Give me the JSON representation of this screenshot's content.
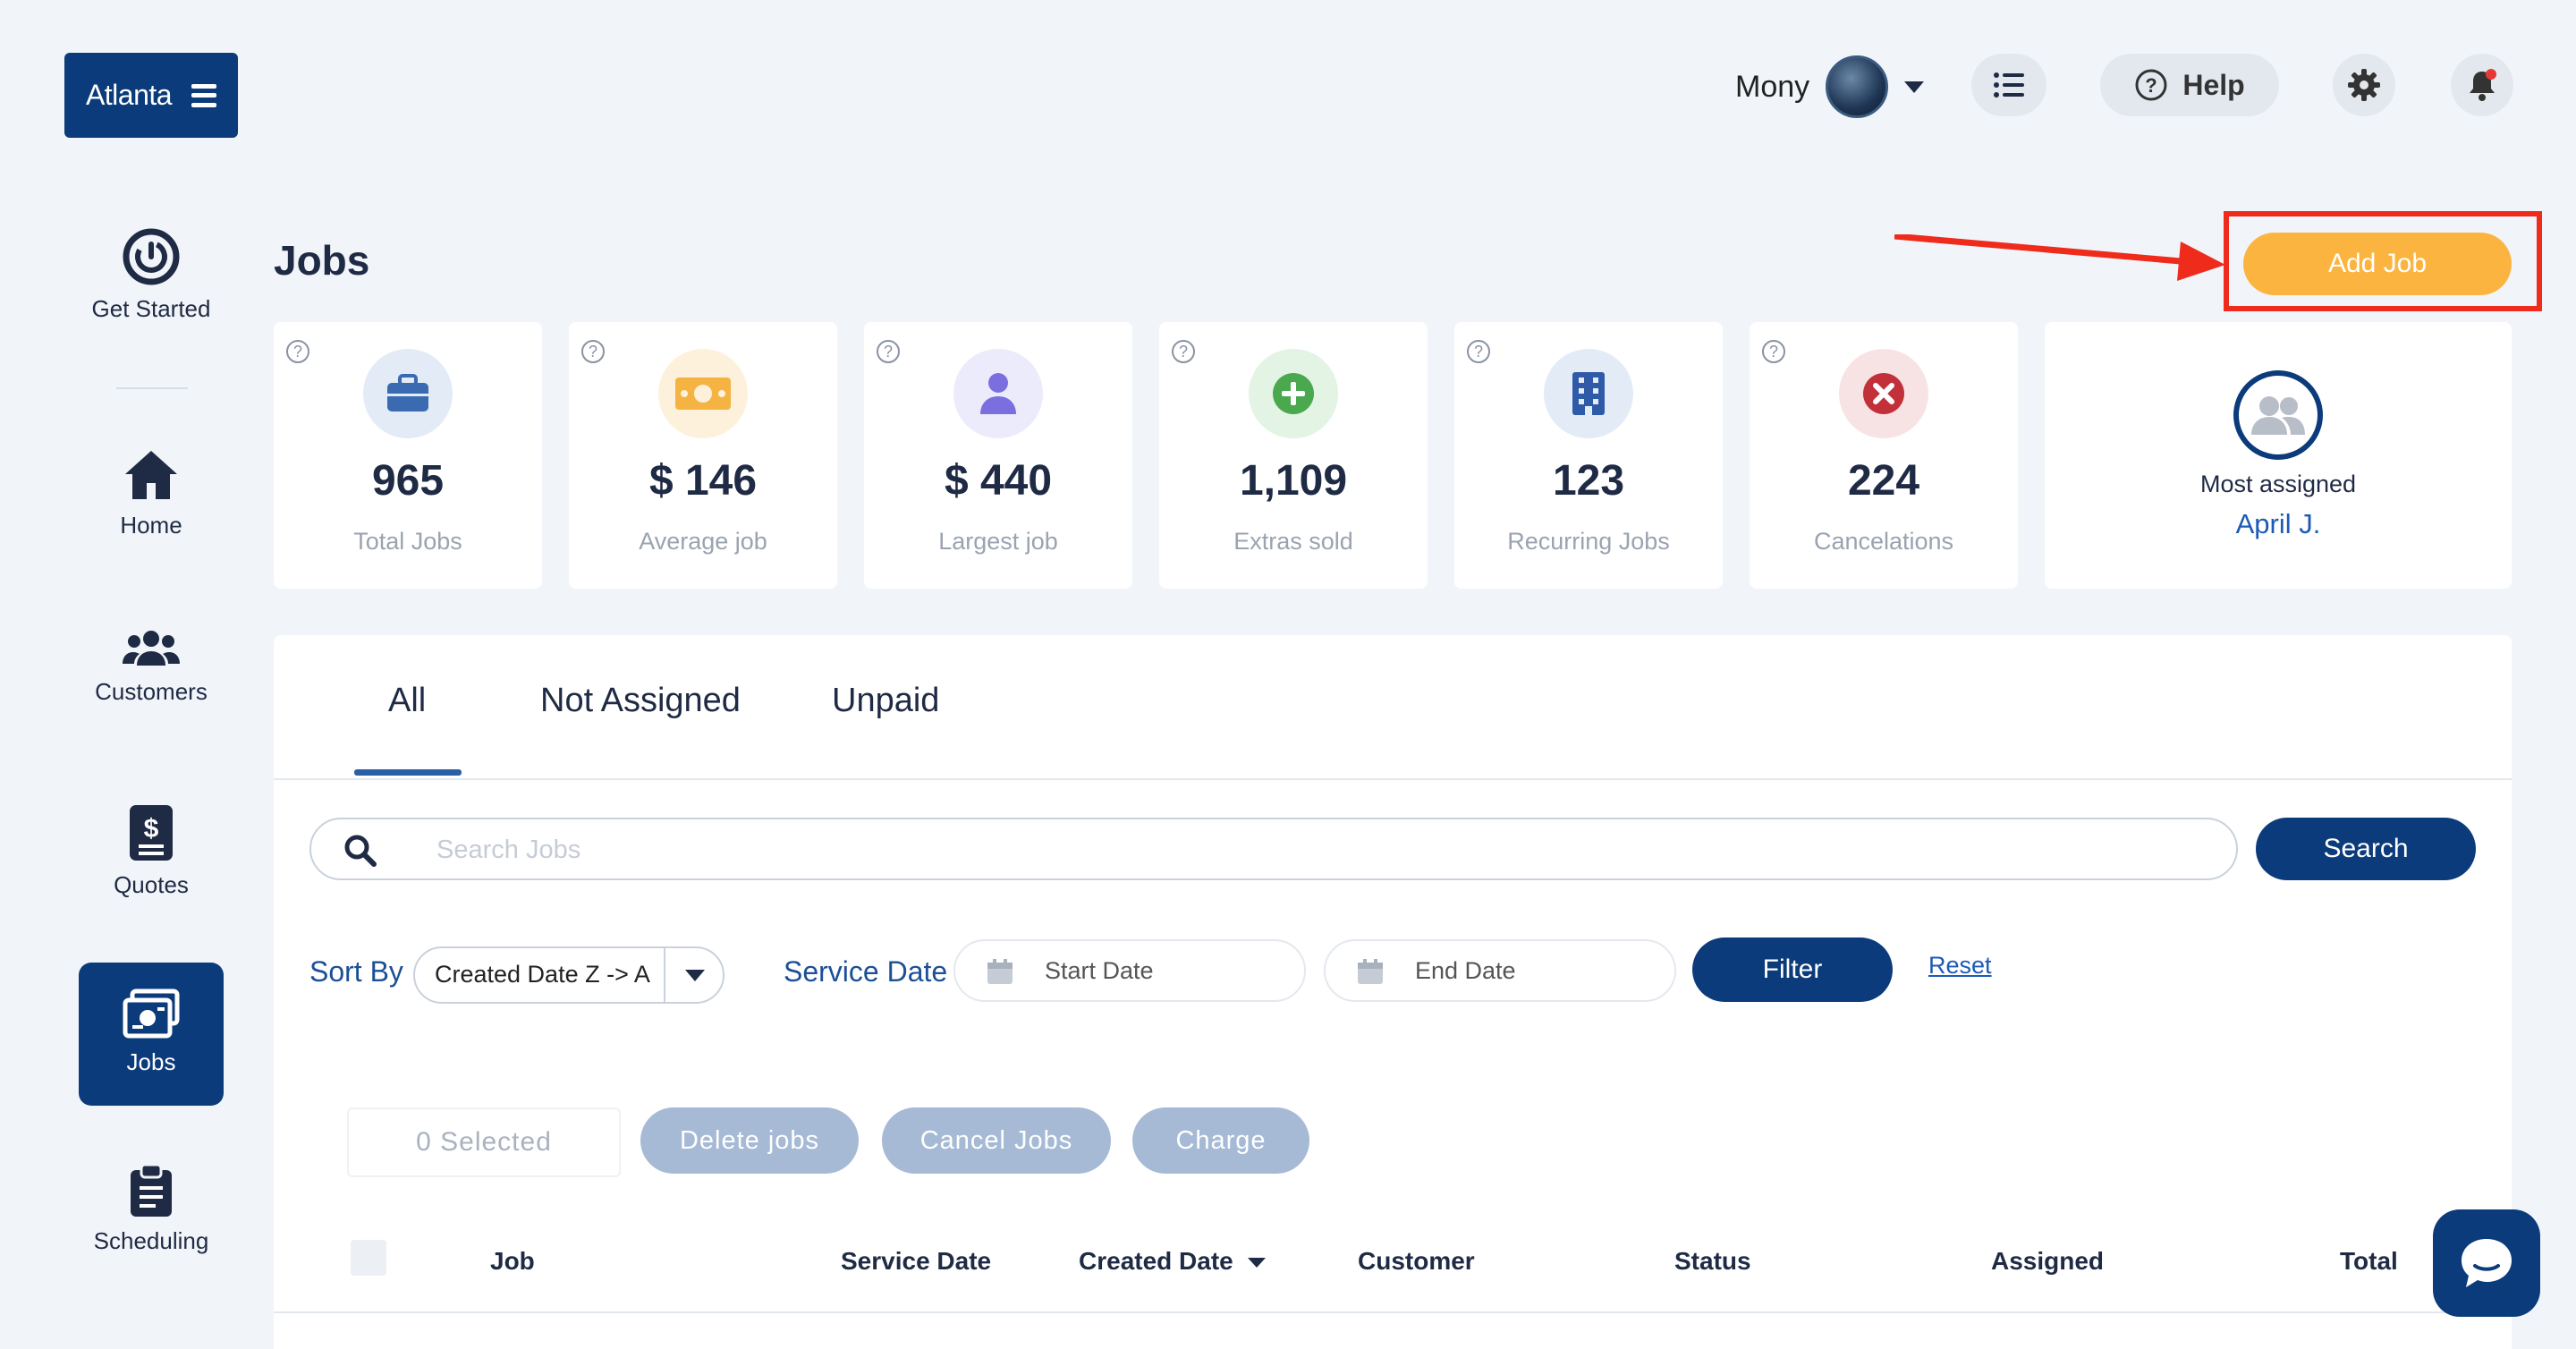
{
  "brand": {
    "location": "Atlanta"
  },
  "header": {
    "user_name": "Mony",
    "help_label": "Help"
  },
  "sidebar": {
    "items": [
      {
        "label": "Get Started",
        "icon": "power-icon"
      },
      {
        "label": "Home",
        "icon": "home-icon"
      },
      {
        "label": "Customers",
        "icon": "users-icon"
      },
      {
        "label": "Quotes",
        "icon": "dollar-doc-icon"
      },
      {
        "label": "Jobs",
        "icon": "jobs-icon",
        "active": true
      },
      {
        "label": "Scheduling",
        "icon": "clipboard-icon"
      }
    ]
  },
  "page": {
    "title": "Jobs",
    "add_job_label": "Add Job"
  },
  "stats": [
    {
      "value": "965",
      "label": "Total Jobs",
      "icon": "briefcase-icon",
      "color": "#3a6bb0"
    },
    {
      "value": "$ 146",
      "label": "Average job",
      "icon": "cash-icon",
      "color": "#f5b342"
    },
    {
      "value": "$ 440",
      "label": "Largest job",
      "icon": "person-icon",
      "color": "#7b6fe0"
    },
    {
      "value": "1,109",
      "label": "Extras sold",
      "icon": "plus-circle-icon",
      "color": "#4aa84f"
    },
    {
      "value": "123",
      "label": "Recurring Jobs",
      "icon": "building-icon",
      "color": "#2f5aa8"
    },
    {
      "value": "224",
      "label": "Cancelations",
      "icon": "x-circle-icon",
      "color": "#c2303a"
    }
  ],
  "most_assigned": {
    "label": "Most assigned",
    "name": "April J."
  },
  "tabs": [
    {
      "label": "All",
      "active": true
    },
    {
      "label": "Not Assigned"
    },
    {
      "label": "Unpaid"
    }
  ],
  "search": {
    "placeholder": "Search Jobs",
    "button_label": "Search"
  },
  "filters": {
    "sort_by_label": "Sort By",
    "sort_value": "Created Date Z -> A",
    "service_date_label": "Service Date",
    "start_date_placeholder": "Start Date",
    "end_date_placeholder": "End Date",
    "filter_label": "Filter",
    "reset_label": "Reset"
  },
  "bulk": {
    "selected_label": "0 Selected",
    "delete_label": "Delete jobs",
    "cancel_label": "Cancel Jobs",
    "charge_label": "Charge"
  },
  "table": {
    "columns": [
      "Job",
      "Service Date",
      "Created Date",
      "Customer",
      "Status",
      "Assigned",
      "Total"
    ]
  },
  "colors": {
    "primary": "#0b3b7a",
    "accent": "#fcb440",
    "highlight": "#ef2b1c",
    "link": "#1c5ab8"
  }
}
